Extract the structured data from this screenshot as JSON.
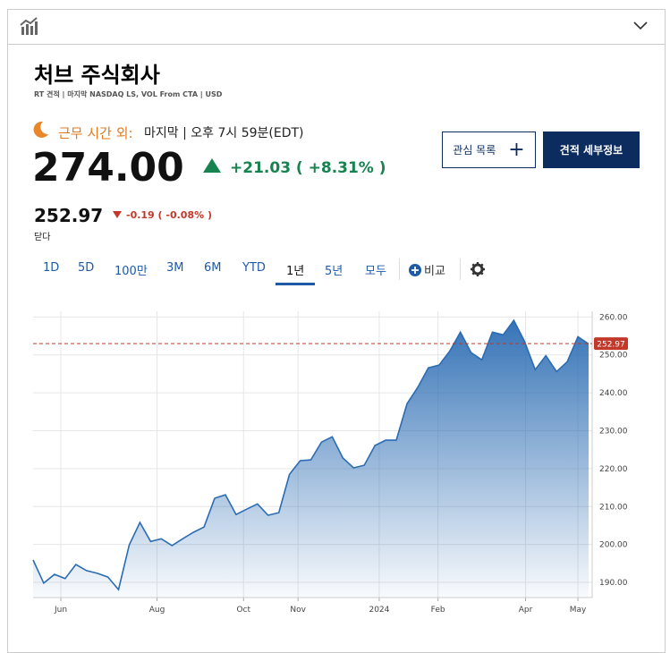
{
  "header": {
    "title": "처브 주식회사",
    "subtitle": "RT 견적 | 마지막 NASDAQ LS, VOL From CTA | USD"
  },
  "quote": {
    "session_label": "근무 시간 외:",
    "session_time": "마지막 | 오후 7시 59분(EDT)",
    "price": "274.00",
    "change": "+21.03 ( +8.31% )",
    "close_price": "252.97",
    "close_change": "-0.19 ( -0.08% )",
    "close_label": "닫다"
  },
  "buttons": {
    "watchlist": "관심 목록",
    "details": "견적 세부정보"
  },
  "tabs": {
    "items": [
      "1D",
      "5D",
      "100만",
      "3M",
      "6M",
      "YTD",
      "1년",
      "5년",
      "모두"
    ],
    "active": 6,
    "compare": "비교"
  },
  "chart_data": {
    "type": "area",
    "color": "#2b6cb3",
    "values": [
      195.9,
      189.8,
      192.1,
      191.0,
      194.7,
      193.1,
      192.4,
      191.4,
      188.1,
      199.9,
      205.8,
      200.8,
      201.5,
      199.7,
      201.5,
      203.2,
      204.6,
      212.2,
      213.1,
      207.9,
      209.3,
      210.7,
      207.7,
      208.4,
      218.5,
      222.1,
      222.3,
      227.0,
      228.4,
      222.8,
      220.2,
      220.9,
      226.1,
      227.5,
      227.5,
      237.1,
      241.4,
      246.6,
      247.3,
      251.0,
      256.0,
      250.6,
      248.7,
      256.0,
      255.3,
      259.1,
      253.6,
      246.1,
      249.8,
      245.6,
      248.2,
      254.8,
      252.9
    ],
    "xlim": [
      0,
      52
    ],
    "xticks": [
      {
        "value": 2.6,
        "label": "Jun"
      },
      {
        "value": 11.6,
        "label": "Aug"
      },
      {
        "value": 19.7,
        "label": "Oct"
      },
      {
        "value": 24.8,
        "label": "Nov"
      },
      {
        "value": 32.4,
        "label": "2024"
      },
      {
        "value": 37.9,
        "label": "Feb"
      },
      {
        "value": 46.1,
        "label": "Apr"
      },
      {
        "value": 51.0,
        "label": "May"
      }
    ],
    "ylim": [
      186,
      261.5
    ],
    "yticks": [
      {
        "value": 190,
        "label": "190.00"
      },
      {
        "value": 200,
        "label": "200.00"
      },
      {
        "value": 210,
        "label": "210.00"
      },
      {
        "value": 220,
        "label": "220.00"
      },
      {
        "value": 230,
        "label": "230.00"
      },
      {
        "value": 240,
        "label": "240.00"
      },
      {
        "value": 250,
        "label": "250.00"
      },
      {
        "value": 260,
        "label": "260.00"
      }
    ],
    "reference_line": 252.97,
    "reference_color": "#c0392b",
    "grid": true
  }
}
